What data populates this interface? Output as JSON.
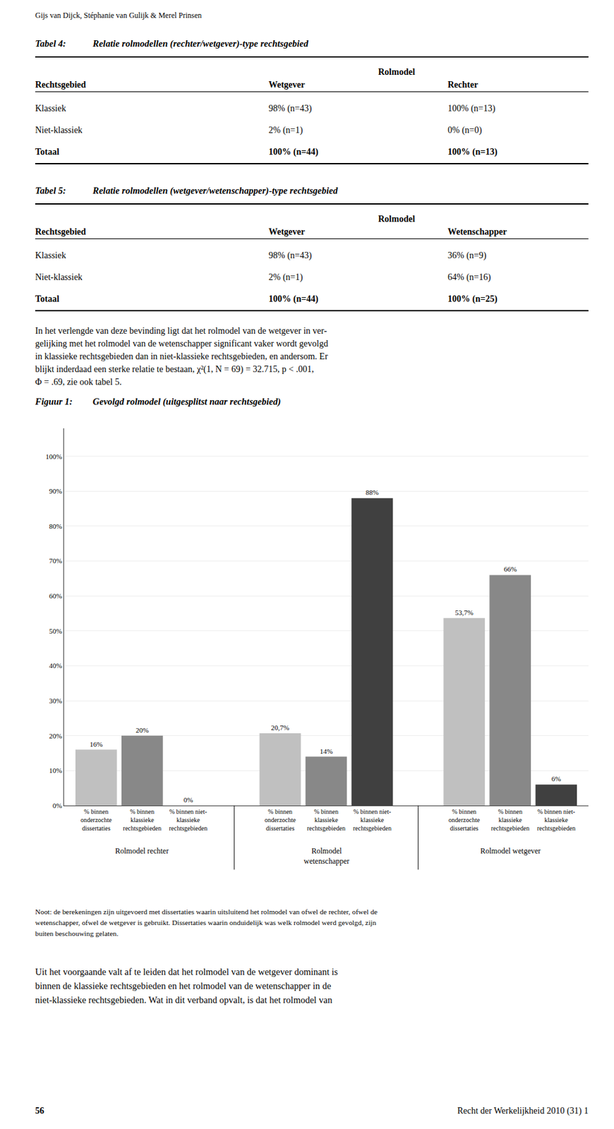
{
  "chart_data": {
    "type": "bar",
    "title": "Figuur 1:",
    "subtitle": "Gevolgd rolmodel (uitgesplitst naar rechtsgebied)",
    "categories": [
      "Rolmodel rechter",
      "Rolmodel\nwetenschapper",
      "Rolmodel wetgever"
    ],
    "series": [
      {
        "name": "% binnen\nonderzochte\ndissertaties",
        "color": "#c0c0c0",
        "values": [
          16,
          20.7,
          53.7
        ],
        "value_labels": [
          "16%",
          "20,7%",
          "53,7%"
        ]
      },
      {
        "name": "% binnen\nklassieke\nrechtsgebieden",
        "color": "#888888",
        "values": [
          20,
          14,
          66
        ],
        "value_labels": [
          "20%",
          "14%",
          "66%"
        ]
      },
      {
        "name": "% binnen niet-\nklassieke\nrechtsgebieden",
        "color": "#404040",
        "values": [
          0,
          88,
          6
        ],
        "value_labels": [
          "0%",
          "88%",
          "6%"
        ]
      }
    ],
    "ylim": [
      0,
      108
    ],
    "yticks": [
      {
        "value": 0,
        "label": "0%"
      },
      {
        "value": 10,
        "label": "10%"
      },
      {
        "value": 20,
        "label": "20%"
      },
      {
        "value": 30,
        "label": "30%"
      },
      {
        "value": 40,
        "label": "40%"
      },
      {
        "value": 50,
        "label": "50%"
      },
      {
        "value": 60,
        "label": "60%"
      },
      {
        "value": 70,
        "label": "70%"
      },
      {
        "value": 80,
        "label": "80%"
      },
      {
        "value": 90,
        "label": "90%"
      },
      {
        "value": 100,
        "label": "100%"
      }
    ],
    "grid": true,
    "data_labels": true,
    "annotations": {
      "header": "Gijs van Dijck, Stéphanie van Gulijk & Merel Prinsen",
      "tables": [
        {
          "title": "Tabel 4:",
          "subtitle": "Relatie rolmodellen (rechter/wetgever)-type rechtsgebied",
          "spanner": "Rolmodel",
          "columns": [
            "Rechtsgebied",
            "Wetgever",
            "Rechter"
          ],
          "rows": [
            [
              "Klassiek",
              "98% (n=43)",
              "100% (n=13)"
            ],
            [
              "Niet-klassiek",
              "2% (n=1)",
              "0% (n=0)"
            ],
            [
              "Totaal",
              "100% (n=44)",
              "100% (n=13)"
            ]
          ]
        },
        {
          "title": "Tabel 5:",
          "subtitle": "Relatie rolmodellen (wetgever/wetenschapper)-type rechtsgebied",
          "spanner": "Rolmodel",
          "columns": [
            "Rechtsgebied",
            "Wetgever",
            "Wetenschapper"
          ],
          "rows": [
            [
              "Klassiek",
              "98% (n=43)",
              "36% (n=9)"
            ],
            [
              "Niet-klassiek",
              "2% (n=1)",
              "64% (n=16)"
            ],
            [
              "Totaal",
              "100% (n=44)",
              "100% (n=25)"
            ]
          ]
        }
      ],
      "paragraph1": [
        "In het verlengde van deze bevinding ligt dat het rolmodel van de wetgever in ver-",
        "gelijking met het rolmodel van de wetenschapper significant vaker wordt gevolgd",
        "in klassieke rechtsgebieden dan in niet-klassieke rechtsgebieden, en andersom. Er",
        "blijkt inderdaad een sterke relatie te bestaan, χ²(1, N = 69) = 32.715, p < .001,",
        "Φ = .69, zie ook tabel 5."
      ],
      "note": [
        "Noot: de berekeningen zijn uitgevoerd met dissertaties waarin uitsluitend het rolmodel van ofwel de rechter, ofwel de",
        "wetenschapper, ofwel de wetgever is gebruikt. Dissertaties waarin onduidelijk was welk rolmodel werd gevolgd, zijn",
        "buiten beschouwing gelaten."
      ],
      "paragraph2": [
        "Uit het voorgaande valt af te leiden dat het rolmodel van de wetgever dominant is",
        "binnen de klassieke rechtsgebieden en het rolmodel van de wetenschapper in de",
        "niet-klassieke rechtsgebieden. Wat in dit verband opvalt, is dat het rolmodel van"
      ],
      "footer": [
        "56",
        "Recht der Werkelijkheid 2010 (31) 1"
      ]
    }
  }
}
